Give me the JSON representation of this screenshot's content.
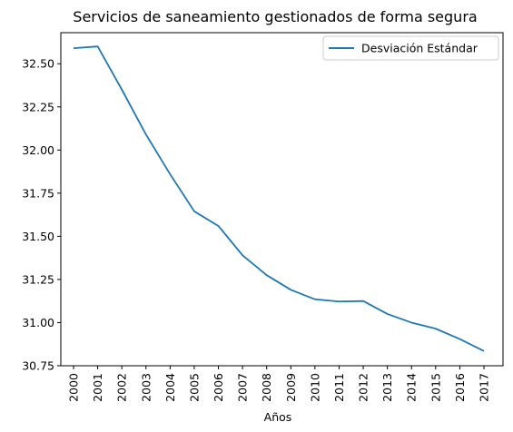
{
  "chart_data": {
    "type": "line",
    "title": "Servicios de saneamiento gestionados de forma segura",
    "xlabel": "Años",
    "ylabel": "",
    "categories": [
      "2000",
      "2001",
      "2002",
      "2003",
      "2004",
      "2005",
      "2006",
      "2007",
      "2008",
      "2009",
      "2010",
      "2011",
      "2012",
      "2013",
      "2014",
      "2015",
      "2016",
      "2017"
    ],
    "series": [
      {
        "name": "Desviación Estándar",
        "color": "#1f77b4",
        "values": [
          32.59,
          32.6,
          32.35,
          32.09,
          31.86,
          31.645,
          31.56,
          31.39,
          31.275,
          31.19,
          31.135,
          31.122,
          31.125,
          31.05,
          31.0,
          30.965,
          30.905,
          30.835
        ]
      }
    ],
    "ylim": [
      30.75,
      32.68
    ],
    "yticks": [
      "30.75",
      "31.00",
      "31.25",
      "31.50",
      "31.75",
      "32.00",
      "32.25",
      "32.50"
    ],
    "legend_position": "top-right",
    "grid": false
  }
}
